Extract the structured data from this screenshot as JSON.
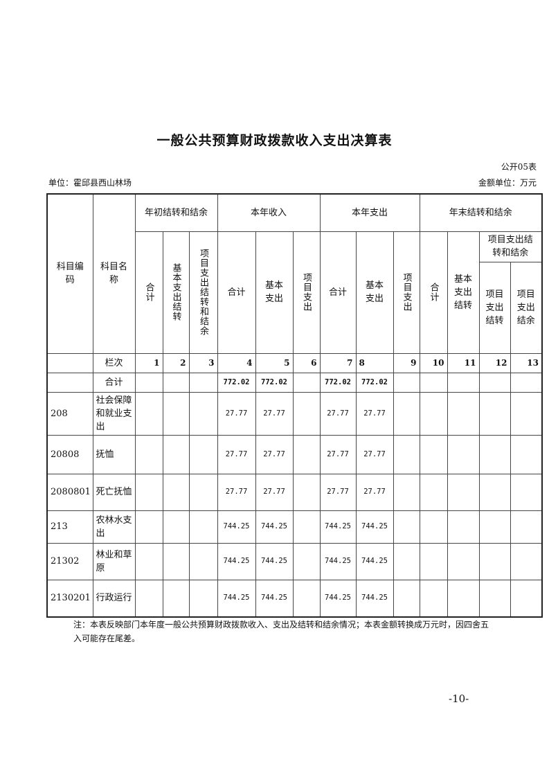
{
  "title": "一般公共预算财政拨款收入支出决算表",
  "form_no": "公开05表",
  "unit": "单位：霍邱县西山林场",
  "money_unit": "金额单位：万元",
  "headers": {
    "code": "科目编码",
    "name": "科目名称",
    "g1": "年初结转和结余",
    "g2": "本年收入",
    "g3": "本年支出",
    "g4": "年末结转和结余",
    "g1c": [
      "合计",
      "基本支出结转",
      "项目支出结转和结余"
    ],
    "g2c": [
      "合计",
      "基本支出",
      "项目支出"
    ],
    "g3c": [
      "合计",
      "基本支出",
      "项目支出"
    ],
    "g4c": [
      "合计",
      "基本支出结转"
    ],
    "g4sub": "项目支出结转和结余",
    "g4subc": [
      "项目支出结转",
      "项目支出结余"
    ]
  },
  "index_row": {
    "label": "栏次",
    "cols": [
      "1",
      "2",
      "3",
      "4",
      "5",
      "6",
      "7",
      "8",
      "9",
      "10",
      "11",
      "12",
      "13"
    ]
  },
  "total_row": {
    "label": "合计",
    "cols": [
      "",
      "",
      "",
      "772.02",
      "772.02",
      "",
      "772.02",
      "772.02",
      "",
      "",
      "",
      "",
      ""
    ]
  },
  "rows": [
    {
      "code": "208",
      "name": "社会保障和就业支出",
      "cols": [
        "",
        "",
        "",
        "27.77",
        "27.77",
        "",
        "27.77",
        "27.77",
        "",
        "",
        "",
        "",
        ""
      ]
    },
    {
      "code": "20808",
      "name": "抚恤",
      "cols": [
        "",
        "",
        "",
        "27.77",
        "27.77",
        "",
        "27.77",
        "27.77",
        "",
        "",
        "",
        "",
        ""
      ]
    },
    {
      "code": "2080801",
      "name": "死亡抚恤",
      "cols": [
        "",
        "",
        "",
        "27.77",
        "27.77",
        "",
        "27.77",
        "27.77",
        "",
        "",
        "",
        "",
        ""
      ]
    },
    {
      "code": "213",
      "name": "农林水支出",
      "cols": [
        "",
        "",
        "",
        "744.25",
        "744.25",
        "",
        "744.25",
        "744.25",
        "",
        "",
        "",
        "",
        ""
      ]
    },
    {
      "code": "21302",
      "name": "林业和草原",
      "cols": [
        "",
        "",
        "",
        "744.25",
        "744.25",
        "",
        "744.25",
        "744.25",
        "",
        "",
        "",
        "",
        ""
      ]
    },
    {
      "code": "2130201",
      "name": "行政运行",
      "cols": [
        "",
        "",
        "",
        "744.25",
        "744.25",
        "",
        "744.25",
        "744.25",
        "",
        "",
        "",
        "",
        ""
      ]
    }
  ],
  "note": "注：本表反映部门本年度一般公共预算财政拨款收入、支出及结转和结余情况；本表金额转换成万元时，因四舍五入可能存在尾差。",
  "page_number": "-10-"
}
